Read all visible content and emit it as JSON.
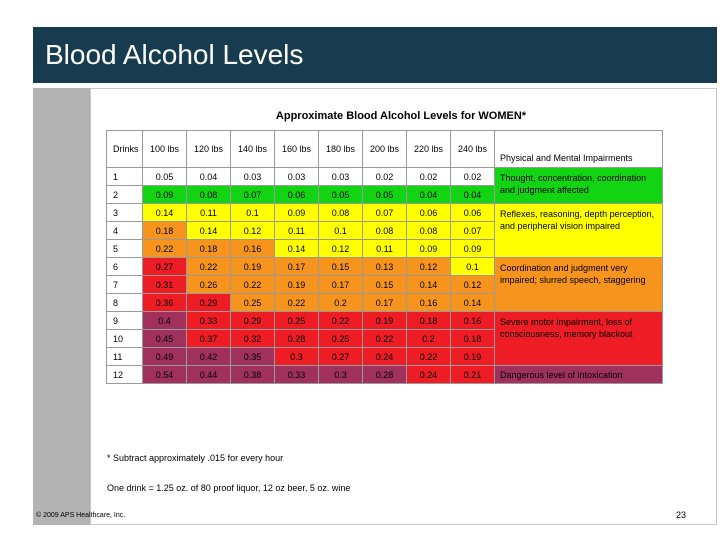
{
  "slide": {
    "title": "Blood Alcohol Levels",
    "table_title": "Approximate Blood Alcohol Levels for WOMEN*",
    "header": {
      "drinks": "Drinks",
      "weights": [
        "100 lbs",
        "120 lbs",
        "140 lbs",
        "160 lbs",
        "180 lbs",
        "200 lbs",
        "220 lbs",
        "240 lbs"
      ],
      "impairments": "Physical and Mental Impairments"
    },
    "rows": [
      {
        "drinks": "1",
        "values": [
          "0.05",
          "0.04",
          "0.03",
          "0.03",
          "0.03",
          "0.02",
          "0.02",
          "0.02"
        ]
      },
      {
        "drinks": "2",
        "values": [
          "0.09",
          "0.08",
          "0.07",
          "0.06",
          "0.05",
          "0.05",
          "0.04",
          "0.04"
        ]
      },
      {
        "drinks": "3",
        "values": [
          "0.14",
          "0.11",
          "0.1",
          "0.09",
          "0.08",
          "0.07",
          "0.06",
          "0.06"
        ]
      },
      {
        "drinks": "4",
        "values": [
          "0.18",
          "0.14",
          "0.12",
          "0.11",
          "0.1",
          "0.08",
          "0.08",
          "0.07"
        ]
      },
      {
        "drinks": "5",
        "values": [
          "0.22",
          "0.18",
          "0.16",
          "0.14",
          "0.12",
          "0.11",
          "0.09",
          "0.09"
        ]
      },
      {
        "drinks": "6",
        "values": [
          "0.27",
          "0.22",
          "0.19",
          "0.17",
          "0.15",
          "0.13",
          "0.12",
          "0.1"
        ]
      },
      {
        "drinks": "7",
        "values": [
          "0.31",
          "0.26",
          "0.22",
          "0.19",
          "0.17",
          "0.15",
          "0.14",
          "0.12"
        ]
      },
      {
        "drinks": "8",
        "values": [
          "0.36",
          "0.29",
          "0.25",
          "0.22",
          "0.2",
          "0.17",
          "0.16",
          "0.14"
        ]
      },
      {
        "drinks": "9",
        "values": [
          "0.4",
          "0.33",
          "0.29",
          "0.25",
          "0.22",
          "0.19",
          "0.18",
          "0.16"
        ]
      },
      {
        "drinks": "10",
        "values": [
          "0.45",
          "0.37",
          "0.32",
          "0.28",
          "0.25",
          "0.22",
          "0.2",
          "0.18"
        ]
      },
      {
        "drinks": "11",
        "values": [
          "0.49",
          "0.42",
          "0.35",
          "0.3",
          "0.27",
          "0.24",
          "0.22",
          "0.19"
        ]
      },
      {
        "drinks": "12",
        "values": [
          "0.54",
          "0.44",
          "0.38",
          "0.33",
          "0.3",
          "0.28",
          "0.24",
          "0.21"
        ]
      }
    ],
    "impairments": [
      {
        "text": "Thought, concentration, coordination and judgment affected",
        "color": "#12d412"
      },
      {
        "text": "Reflexes, reasoning, depth perception, and peripheral vision impaired",
        "color": "#ffff00"
      },
      {
        "text": "Coordination and judgment very impaired; slurred speech, staggering",
        "color": "#f7941d"
      },
      {
        "text": "Severe motor impairment, loss of consciousness, memory blackout",
        "color": "#a0305c"
      },
      {
        "text": "Dangerous level of intoxication",
        "color": "#a0305c"
      }
    ],
    "footnote": "* Subtract approximately .015 for every hour",
    "drink_definition": "One drink = 1.25 oz. of 80 proof liquor, 12 oz beer, 5 oz. wine",
    "copyright": "© 2009 APS Healthcare, Inc.",
    "page_number": "23"
  }
}
